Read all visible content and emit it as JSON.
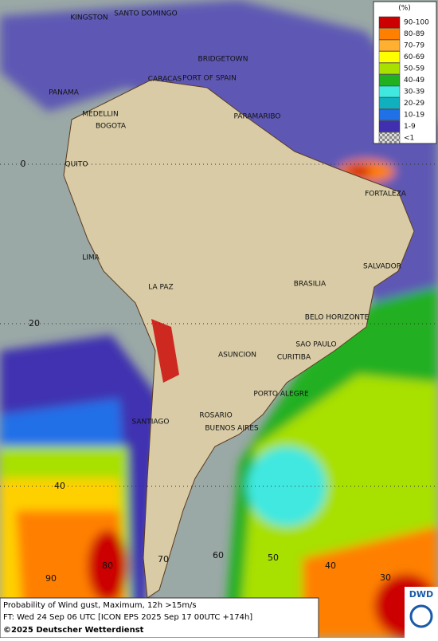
{
  "legend": {
    "unit": "(%)",
    "items": [
      {
        "label": "90-100",
        "color": "#cc0000"
      },
      {
        "label": "80-89",
        "color": "#ff7f00"
      },
      {
        "label": "70-79",
        "color": "#ffb030"
      },
      {
        "label": "60-69",
        "color": "#ffff00"
      },
      {
        "label": "50-59",
        "color": "#a8e000"
      },
      {
        "label": "40-49",
        "color": "#20b020"
      },
      {
        "label": "30-39",
        "color": "#40e8e0"
      },
      {
        "label": "20-29",
        "color": "#10b0c0"
      },
      {
        "label": "10-19",
        "color": "#2070e8"
      },
      {
        "label": "1-9",
        "color": "#4030b0"
      },
      {
        "label": "<1",
        "color": "checker"
      }
    ]
  },
  "cities": [
    "KINGSTON",
    "SANTO DOMINGO",
    "BRIDGETOWN",
    "CARACAS",
    "PORT OF SPAIN",
    "PANAMA",
    "MEDELLIN",
    "BOGOTA",
    "PARAMARIBO",
    "QUITO",
    "FORTALEZA",
    "LIMA",
    "SALVADOR",
    "LA PAZ",
    "BRASILIA",
    "BELO HORIZONTE",
    "SAO PAULO",
    "ASUNCION",
    "CURITIBA",
    "PORTO ALEGRE",
    "ROSARIO",
    "SANTIAGO",
    "BUENOS AIRES"
  ],
  "graticule_labels": [
    "0",
    "20",
    "40",
    "90",
    "80",
    "70",
    "60",
    "50",
    "40",
    "30"
  ],
  "footer": {
    "line1": "Probability of Wind gust, Maximum, 12h >15m/s",
    "line2": "FT: Wed 24 Sep 06 UTC [ICON EPS 2025 Sep 17 00UTC +174h]",
    "copyright": "©2025 Deutscher Wetterdienst"
  },
  "logo": "DWD"
}
